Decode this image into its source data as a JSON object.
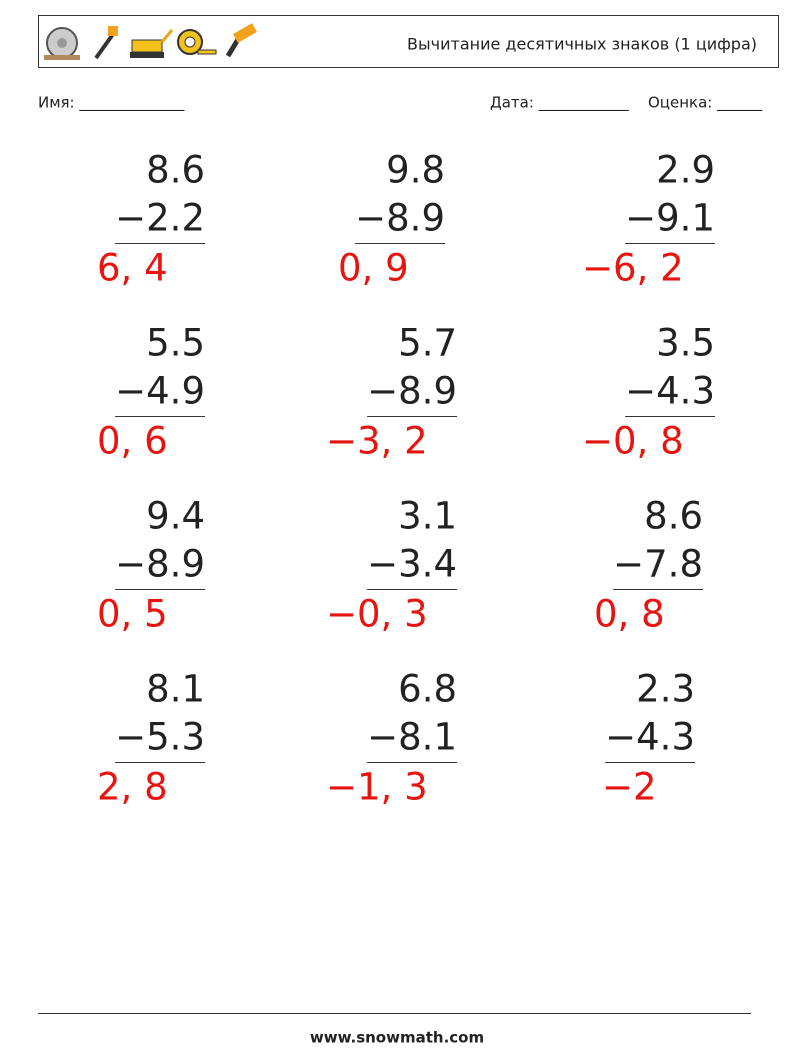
{
  "header": {
    "title": "Вычитание десятичных знаков (1 цифра)"
  },
  "fields": {
    "name": "Имя: ______________",
    "date": "Дата: ____________",
    "grade": "Оценка: ______"
  },
  "problems": [
    {
      "top": "8.6",
      "bottom": "−2.2",
      "answer": "6, 4"
    },
    {
      "top": "9.8",
      "bottom": "−8.9",
      "answer": "0, 9"
    },
    {
      "top": "2.9",
      "bottom": "−9.1",
      "answer": "−6, 2"
    },
    {
      "top": "5.5",
      "bottom": "−4.9",
      "answer": "0, 6"
    },
    {
      "top": "5.7",
      "bottom": "−8.9",
      "answer": "−3, 2"
    },
    {
      "top": "3.5",
      "bottom": "−4.3",
      "answer": "−0, 8"
    },
    {
      "top": "9.4",
      "bottom": "−8.9",
      "answer": "0, 5"
    },
    {
      "top": "3.1",
      "bottom": "−3.4",
      "answer": "−0, 3"
    },
    {
      "top": "8.6",
      "bottom": "−7.8",
      "answer": "0, 8"
    },
    {
      "top": "8.1",
      "bottom": "−5.3",
      "answer": "2, 8"
    },
    {
      "top": "6.8",
      "bottom": "−8.1",
      "answer": "−1, 3"
    },
    {
      "top": "2.3",
      "bottom": "−4.3",
      "answer": "−2"
    }
  ],
  "footer": {
    "url": "www.snowmath.com"
  }
}
